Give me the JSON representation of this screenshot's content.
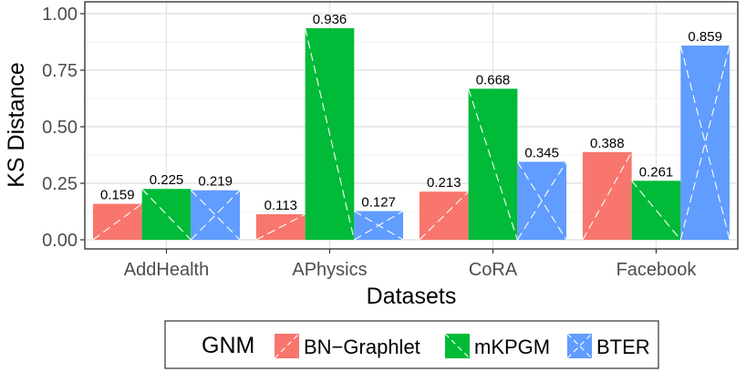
{
  "chart_data": {
    "type": "bar",
    "title": "",
    "xlabel": "Datasets",
    "ylabel": "KS Distance",
    "categories": [
      "AddHealth",
      "APhysics",
      "CoRA",
      "Facebook"
    ],
    "series": [
      {
        "name": "BN−Graphlet",
        "color": "#F8766D",
        "values": [
          0.159,
          0.113,
          0.213,
          0.388
        ],
        "labels": [
          "0.159",
          "0.113",
          "0.213",
          "0.388"
        ]
      },
      {
        "name": "mKPGM",
        "color": "#00BA38",
        "values": [
          0.225,
          0.936,
          0.668,
          0.261
        ],
        "labels": [
          "0.225",
          "0.936",
          "0.668",
          "0.261"
        ]
      },
      {
        "name": "BTER",
        "color": "#619CFF",
        "values": [
          0.219,
          0.127,
          0.345,
          0.859
        ],
        "labels": [
          "0.219",
          "0.127",
          "0.345",
          "0.859"
        ]
      }
    ],
    "ylim": [
      0,
      1.0
    ],
    "yticks": [
      0,
      0.25,
      0.5,
      0.75,
      1.0
    ],
    "ytick_labels": [
      "0.00",
      "0.25",
      "0.50",
      "0.75",
      "1.00"
    ],
    "grid": true,
    "legend": {
      "title": "GNM",
      "position": "bottom"
    }
  }
}
